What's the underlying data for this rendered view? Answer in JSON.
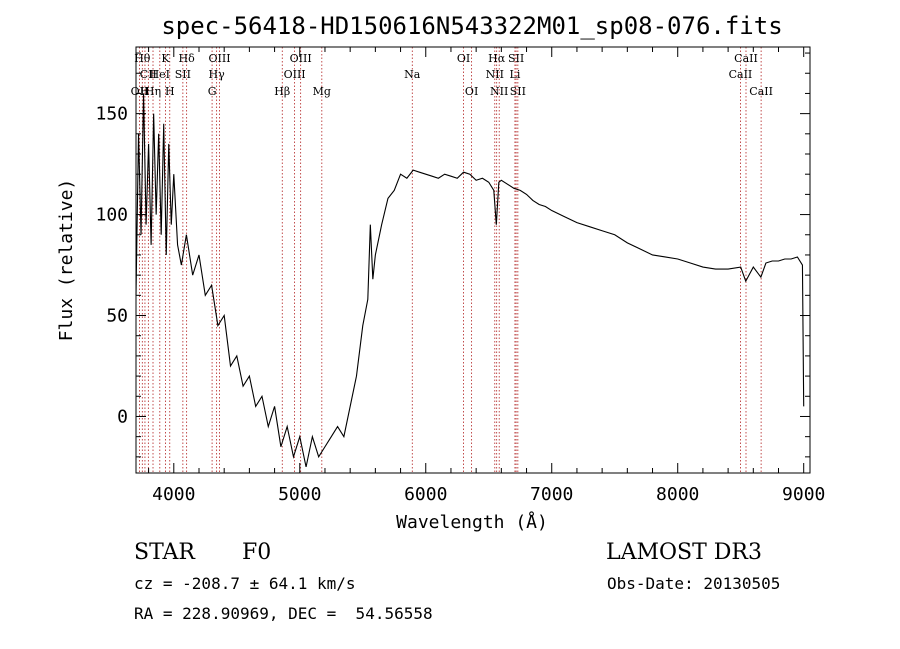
{
  "chart_data": {
    "type": "line",
    "title": "spec-56418-HD150616N543322M01_sp08-076.fits",
    "xlabel": "Wavelength (Å)",
    "ylabel": "Flux (relative)",
    "xlim": [
      3700,
      9050
    ],
    "ylim": [
      -28,
      183
    ],
    "xticks": [
      4000,
      5000,
      6000,
      7000,
      8000,
      9000
    ],
    "yticks": [
      0,
      50,
      100,
      150
    ],
    "grid": false,
    "series": [
      {
        "color": "#000000",
        "x": [
          3700,
          3720,
          3740,
          3760,
          3780,
          3800,
          3820,
          3840,
          3860,
          3880,
          3900,
          3920,
          3940,
          3960,
          3980,
          4000,
          4030,
          4060,
          4100,
          4150,
          4200,
          4250,
          4300,
          4350,
          4400,
          4450,
          4500,
          4550,
          4600,
          4650,
          4700,
          4750,
          4800,
          4850,
          4900,
          4950,
          5000,
          5050,
          5100,
          5150,
          5200,
          5250,
          5300,
          5350,
          5400,
          5450,
          5500,
          5540,
          5560,
          5580,
          5600,
          5650,
          5700,
          5750,
          5800,
          5850,
          5900,
          5950,
          6000,
          6050,
          6100,
          6150,
          6200,
          6250,
          6300,
          6350,
          6400,
          6450,
          6500,
          6540,
          6560,
          6580,
          6600,
          6650,
          6700,
          6750,
          6800,
          6850,
          6900,
          6950,
          7000,
          7100,
          7200,
          7300,
          7400,
          7500,
          7600,
          7700,
          7800,
          7900,
          8000,
          8100,
          8200,
          8300,
          8400,
          8500,
          8540,
          8600,
          8660,
          8700,
          8750,
          8800,
          8850,
          8900,
          8950,
          8990,
          9000
        ],
        "y": [
          60,
          140,
          90,
          160,
          95,
          135,
          85,
          150,
          100,
          140,
          90,
          145,
          80,
          135,
          95,
          120,
          85,
          75,
          90,
          70,
          80,
          60,
          65,
          45,
          50,
          25,
          30,
          15,
          20,
          5,
          10,
          -5,
          5,
          -15,
          -5,
          -20,
          -10,
          -25,
          -10,
          -20,
          -15,
          -10,
          -5,
          -10,
          5,
          20,
          45,
          58,
          95,
          68,
          80,
          95,
          108,
          112,
          120,
          118,
          122,
          121,
          120,
          119,
          118,
          120,
          119,
          118,
          121,
          120,
          117,
          118,
          116,
          112,
          95,
          116,
          117,
          115,
          113,
          112,
          110,
          107,
          105,
          104,
          102,
          99,
          96,
          94,
          92,
          90,
          86,
          83,
          80,
          79,
          78,
          76,
          74,
          73,
          73,
          74,
          67,
          74,
          69,
          76,
          77,
          77,
          78,
          78,
          79,
          75,
          5
        ]
      }
    ],
    "lines": [
      {
        "wavelength": 3728,
        "label": "OII",
        "row": 3
      },
      {
        "wavelength": 3750,
        "label": "Hθ",
        "row": 1
      },
      {
        "wavelength": 3771,
        "label": "H",
        "row": 3
      },
      {
        "wavelength": 3798,
        "label": "CII",
        "row": 2
      },
      {
        "wavelength": 3835,
        "label": "Hη",
        "row": 3
      },
      {
        "wavelength": 3889,
        "label": "HeI",
        "row": 2
      },
      {
        "wavelength": 3934,
        "label": "K",
        "row": 1
      },
      {
        "wavelength": 3968,
        "label": "H",
        "row": 3
      },
      {
        "wavelength": 4072,
        "label": "SII",
        "row": 2
      },
      {
        "wavelength": 4102,
        "label": "Hδ",
        "row": 1
      },
      {
        "wavelength": 4304,
        "label": "G",
        "row": 3
      },
      {
        "wavelength": 4340,
        "label": "Hγ",
        "row": 2
      },
      {
        "wavelength": 4363,
        "label": "OIII",
        "row": 1
      },
      {
        "wavelength": 4861,
        "label": "Hβ",
        "row": 3
      },
      {
        "wavelength": 4959,
        "label": "OIII",
        "row": 2
      },
      {
        "wavelength": 5007,
        "label": "OIII",
        "row": 1
      },
      {
        "wavelength": 5175,
        "label": "Mg",
        "row": 3
      },
      {
        "wavelength": 5893,
        "label": "Na",
        "row": 2
      },
      {
        "wavelength": 6300,
        "label": "OI",
        "row": 1
      },
      {
        "wavelength": 6364,
        "label": "OI",
        "row": 3
      },
      {
        "wavelength": 6548,
        "label": "NII",
        "row": 2
      },
      {
        "wavelength": 6563,
        "label": "Hα",
        "row": 1
      },
      {
        "wavelength": 6583,
        "label": "NII",
        "row": 3
      },
      {
        "wavelength": 6708,
        "label": "Li",
        "row": 2
      },
      {
        "wavelength": 6717,
        "label": "SII",
        "row": 1
      },
      {
        "wavelength": 6731,
        "label": "SII",
        "row": 3
      },
      {
        "wavelength": 8498,
        "label": "CaII",
        "row": 2
      },
      {
        "wavelength": 8542,
        "label": "CaII",
        "row": 1
      },
      {
        "wavelength": 8662,
        "label": "CaII",
        "row": 3
      }
    ],
    "line_marker_color": "#b22222"
  },
  "info": {
    "object_class": "STAR",
    "subclass": "F0",
    "survey": "LAMOST DR3",
    "cz": "cz = -208.7 ± 64.1 km/s",
    "obs_date": "Obs-Date: 20130505",
    "coords": "RA = 228.90969, DEC =  54.56558"
  }
}
